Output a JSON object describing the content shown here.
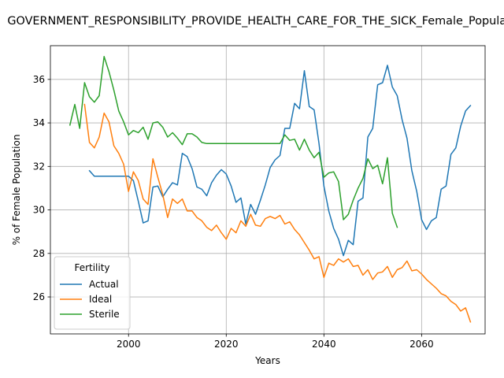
{
  "chart_data": {
    "type": "line",
    "title": "GOVERNMENT_RESPONSIBILITY_PROVIDE_HEALTH_CARE_FOR_THE_SICK_Female_Population",
    "xlabel": "Years",
    "ylabel": "% of Female Population",
    "xlim": [
      1984,
      2073
    ],
    "ylim": [
      24.3,
      37.55
    ],
    "xticks": [
      2000,
      2020,
      2040,
      2060
    ],
    "yticks": [
      26,
      28,
      30,
      32,
      34,
      36
    ],
    "grid": true,
    "legend": {
      "title": "Fertility",
      "placement": "lower-left"
    },
    "series": [
      {
        "name": "Actual",
        "color": "#1f77b4",
        "x": [
          1992,
          1993,
          1994,
          1995,
          1996,
          1997,
          1998,
          1999,
          2000,
          2001,
          2002,
          2003,
          2004,
          2005,
          2006,
          2007,
          2008,
          2009,
          2010,
          2011,
          2012,
          2013,
          2014,
          2015,
          2016,
          2017,
          2018,
          2019,
          2020,
          2021,
          2022,
          2023,
          2024,
          2025,
          2026,
          2027,
          2028,
          2029,
          2030,
          2031,
          2032,
          2033,
          2034,
          2035,
          2036,
          2037,
          2038,
          2039,
          2040,
          2041,
          2042,
          2043,
          2044,
          2045,
          2046,
          2047,
          2048,
          2049,
          2050,
          2051,
          2052,
          2053,
          2054,
          2055,
          2056,
          2057,
          2058,
          2059,
          2060,
          2061,
          2062,
          2063,
          2064,
          2065,
          2066,
          2067,
          2068,
          2069,
          2070
        ],
        "y": [
          31.8,
          31.55,
          31.55,
          31.55,
          31.55,
          31.55,
          31.55,
          31.55,
          31.55,
          31.35,
          30.4,
          29.4,
          29.5,
          31.05,
          31.1,
          30.6,
          30.95,
          31.25,
          31.15,
          32.6,
          32.45,
          31.9,
          31.05,
          30.95,
          30.65,
          31.25,
          31.6,
          31.85,
          31.65,
          31.1,
          30.35,
          30.55,
          29.35,
          30.25,
          29.8,
          30.45,
          31.15,
          31.95,
          32.3,
          32.5,
          33.75,
          33.75,
          34.9,
          34.65,
          36.4,
          34.75,
          34.6,
          33.05,
          31.1,
          29.95,
          29.15,
          28.65,
          27.9,
          28.6,
          28.4,
          30.4,
          30.55,
          33.35,
          33.75,
          35.75,
          35.85,
          36.65,
          35.65,
          35.25,
          34.15,
          33.3,
          31.8,
          30.85,
          29.55,
          29.1,
          29.5,
          29.65,
          30.95,
          31.1,
          32.55,
          32.85,
          33.85,
          34.55,
          34.8
        ]
      },
      {
        "name": "Ideal",
        "color": "#ff7f0e",
        "x": [
          1991,
          1992,
          1993,
          1994,
          1995,
          1996,
          1997,
          1998,
          1999,
          2000,
          2001,
          2002,
          2003,
          2004,
          2005,
          2006,
          2007,
          2008,
          2009,
          2010,
          2011,
          2012,
          2013,
          2014,
          2015,
          2016,
          2017,
          2018,
          2019,
          2020,
          2021,
          2022,
          2023,
          2024,
          2025,
          2026,
          2027,
          2028,
          2029,
          2030,
          2031,
          2032,
          2033,
          2034,
          2035,
          2036,
          2037,
          2038,
          2039,
          2040,
          2041,
          2042,
          2043,
          2044,
          2045,
          2046,
          2047,
          2048,
          2049,
          2050,
          2051,
          2052,
          2053,
          2054,
          2055,
          2056,
          2057,
          2058,
          2059,
          2060,
          2061,
          2062,
          2063,
          2064,
          2065,
          2066,
          2067,
          2068,
          2069,
          2070
        ],
        "y": [
          34.85,
          33.1,
          32.85,
          33.35,
          34.45,
          34.05,
          32.95,
          32.6,
          32.1,
          30.85,
          31.75,
          31.35,
          30.5,
          30.25,
          32.35,
          31.5,
          30.7,
          29.65,
          30.5,
          30.3,
          30.5,
          29.95,
          29.95,
          29.65,
          29.5,
          29.2,
          29.05,
          29.3,
          28.95,
          28.65,
          29.15,
          28.95,
          29.5,
          29.25,
          29.8,
          29.3,
          29.25,
          29.6,
          29.7,
          29.6,
          29.75,
          29.35,
          29.45,
          29.1,
          28.85,
          28.5,
          28.15,
          27.75,
          27.85,
          26.9,
          27.55,
          27.45,
          27.75,
          27.6,
          27.75,
          27.4,
          27.45,
          27.0,
          27.25,
          26.8,
          27.1,
          27.15,
          27.4,
          26.9,
          27.25,
          27.35,
          27.65,
          27.2,
          27.25,
          27.05,
          26.8,
          26.6,
          26.4,
          26.15,
          26.05,
          25.8,
          25.65,
          25.35,
          25.5,
          24.85
        ]
      },
      {
        "name": "Sterile",
        "color": "#2ca02c",
        "x": [
          1988,
          1989,
          1990,
          1991,
          1992,
          1993,
          1994,
          1995,
          1996,
          1997,
          1998,
          1999,
          2000,
          2001,
          2002,
          2003,
          2004,
          2005,
          2006,
          2007,
          2008,
          2009,
          2010,
          2011,
          2012,
          2013,
          2014,
          2015,
          2016,
          2017,
          2018,
          2019,
          2020,
          2021,
          2022,
          2023,
          2024,
          2025,
          2026,
          2027,
          2028,
          2029,
          2030,
          2031,
          2032,
          2033,
          2034,
          2035,
          2036,
          2037,
          2038,
          2039,
          2040,
          2041,
          2042,
          2043,
          2044,
          2045,
          2046,
          2047,
          2048,
          2049,
          2050,
          2051,
          2052,
          2053,
          2054,
          2055
        ],
        "y": [
          33.9,
          34.85,
          33.75,
          35.85,
          35.2,
          34.95,
          35.25,
          37.05,
          36.35,
          35.5,
          34.55,
          34.05,
          33.45,
          33.65,
          33.55,
          33.8,
          33.25,
          34.0,
          34.05,
          33.8,
          33.35,
          33.55,
          33.3,
          33.0,
          33.5,
          33.5,
          33.35,
          33.1,
          33.05,
          33.05,
          33.05,
          33.05,
          33.05,
          33.05,
          33.05,
          33.05,
          33.05,
          33.05,
          33.05,
          33.05,
          33.05,
          33.05,
          33.05,
          33.05,
          33.45,
          33.2,
          33.25,
          32.75,
          33.25,
          32.75,
          32.4,
          32.65,
          31.5,
          31.7,
          31.75,
          31.3,
          29.55,
          29.8,
          30.45,
          31.0,
          31.45,
          32.35,
          31.9,
          32.05,
          31.2,
          32.4,
          29.85,
          29.2
        ]
      }
    ]
  }
}
